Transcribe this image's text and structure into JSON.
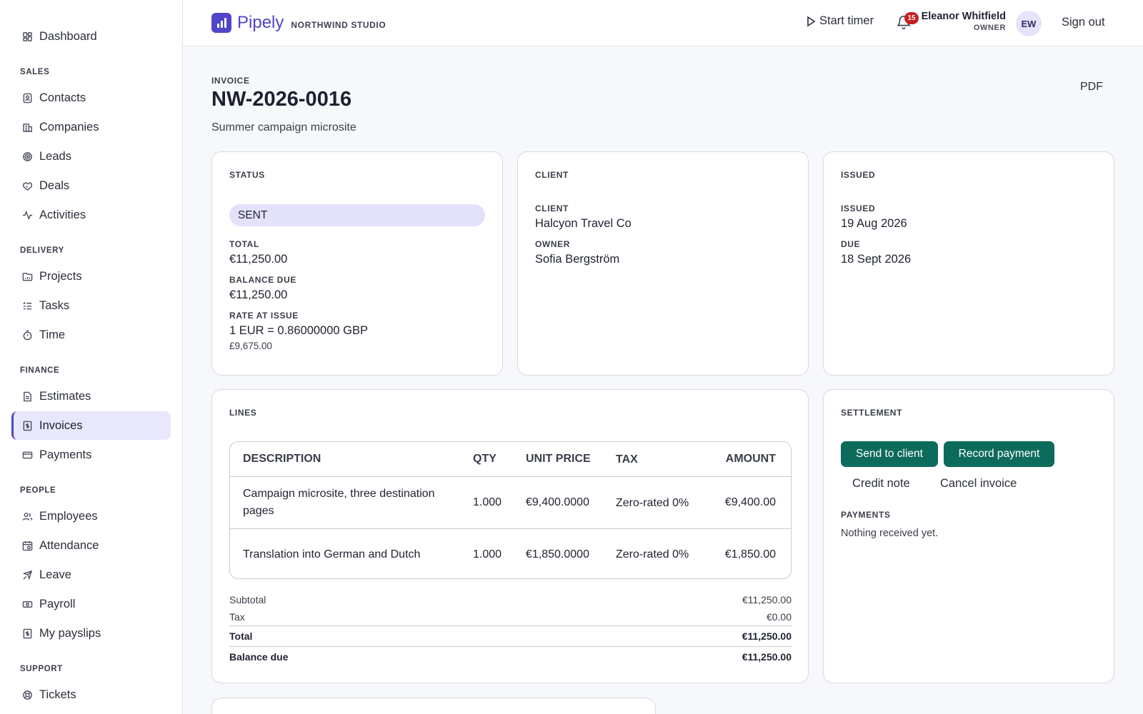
{
  "sidebar": {
    "top": {
      "label": "Dashboard",
      "icon": "dashboard-icon"
    },
    "sections": [
      {
        "title": "SALES",
        "items": [
          {
            "label": "Contacts",
            "icon": "contacts-icon"
          },
          {
            "label": "Companies",
            "icon": "companies-icon"
          },
          {
            "label": "Leads",
            "icon": "leads-icon"
          },
          {
            "label": "Deals",
            "icon": "deals-icon"
          },
          {
            "label": "Activities",
            "icon": "activities-icon"
          }
        ]
      },
      {
        "title": "DELIVERY",
        "items": [
          {
            "label": "Projects",
            "icon": "projects-icon"
          },
          {
            "label": "Tasks",
            "icon": "tasks-icon"
          },
          {
            "label": "Time",
            "icon": "time-icon"
          }
        ]
      },
      {
        "title": "FINANCE",
        "items": [
          {
            "label": "Estimates",
            "icon": "estimates-icon"
          },
          {
            "label": "Invoices",
            "icon": "invoices-icon",
            "active": true
          },
          {
            "label": "Payments",
            "icon": "payments-icon"
          }
        ]
      },
      {
        "title": "PEOPLE",
        "items": [
          {
            "label": "Employees",
            "icon": "employees-icon"
          },
          {
            "label": "Attendance",
            "icon": "attendance-icon"
          },
          {
            "label": "Leave",
            "icon": "leave-icon"
          },
          {
            "label": "Payroll",
            "icon": "payroll-icon"
          },
          {
            "label": "My payslips",
            "icon": "payslips-icon"
          }
        ]
      },
      {
        "title": "SUPPORT",
        "items": [
          {
            "label": "Tickets",
            "icon": "tickets-icon"
          }
        ]
      }
    ]
  },
  "header": {
    "brand": "Pipely",
    "org": "NORTHWIND STUDIO",
    "timer_label": "Start timer",
    "notification_count": "15",
    "user_name": "Eleanor Whitfield",
    "user_role": "OWNER",
    "avatar_initials": "EW",
    "signout_label": "Sign out"
  },
  "invoice": {
    "kind": "INVOICE",
    "number": "NW-2026-0016",
    "subtitle": "Summer campaign microsite",
    "pdf_label": "PDF"
  },
  "status_card": {
    "title": "STATUS",
    "status": "SENT",
    "total_label": "TOTAL",
    "total": "€11,250.00",
    "balance_label": "BALANCE DUE",
    "balance": "€11,250.00",
    "rate_label": "RATE AT ISSUE",
    "rate": "1 EUR = 0.86000000 GBP",
    "converted": "£9,675.00"
  },
  "client_card": {
    "title": "CLIENT",
    "client_label": "CLIENT",
    "client": "Halcyon Travel Co",
    "owner_label": "OWNER",
    "owner": "Sofia Bergström"
  },
  "issued_card": {
    "title": "ISSUED",
    "issued_label": "ISSUED",
    "issued": "19 Aug 2026",
    "due_label": "DUE",
    "due": "18 Sept 2026"
  },
  "lines_card": {
    "title": "LINES",
    "columns": {
      "description": "DESCRIPTION",
      "qty": "QTY",
      "unit_price": "UNIT PRICE",
      "tax": "TAX",
      "amount": "AMOUNT"
    },
    "rows": [
      {
        "description": "Campaign microsite, three destination pages",
        "qty": "1.000",
        "unit_price": "€9,400.0000",
        "tax": "Zero-rated 0%",
        "amount": "€9,400.00"
      },
      {
        "description": "Translation into German and Dutch",
        "qty": "1.000",
        "unit_price": "€1,850.0000",
        "tax": "Zero-rated 0%",
        "amount": "€1,850.00"
      }
    ],
    "totals": {
      "subtotal_label": "Subtotal",
      "subtotal": "€11,250.00",
      "tax_label": "Tax",
      "tax": "€0.00",
      "total_label": "Total",
      "total": "€11,250.00",
      "balance_label": "Balance due",
      "balance": "€11,250.00"
    }
  },
  "settlement_card": {
    "title": "SETTLEMENT",
    "send_label": "Send to client",
    "record_label": "Record payment",
    "credit_label": "Credit note",
    "cancel_label": "Cancel invoice",
    "payments_label": "PAYMENTS",
    "payments_empty": "Nothing received yet."
  },
  "colors": {
    "accent": "#4f46c9",
    "primary_button": "#0d6b5b",
    "badge": "#c81e1e"
  }
}
